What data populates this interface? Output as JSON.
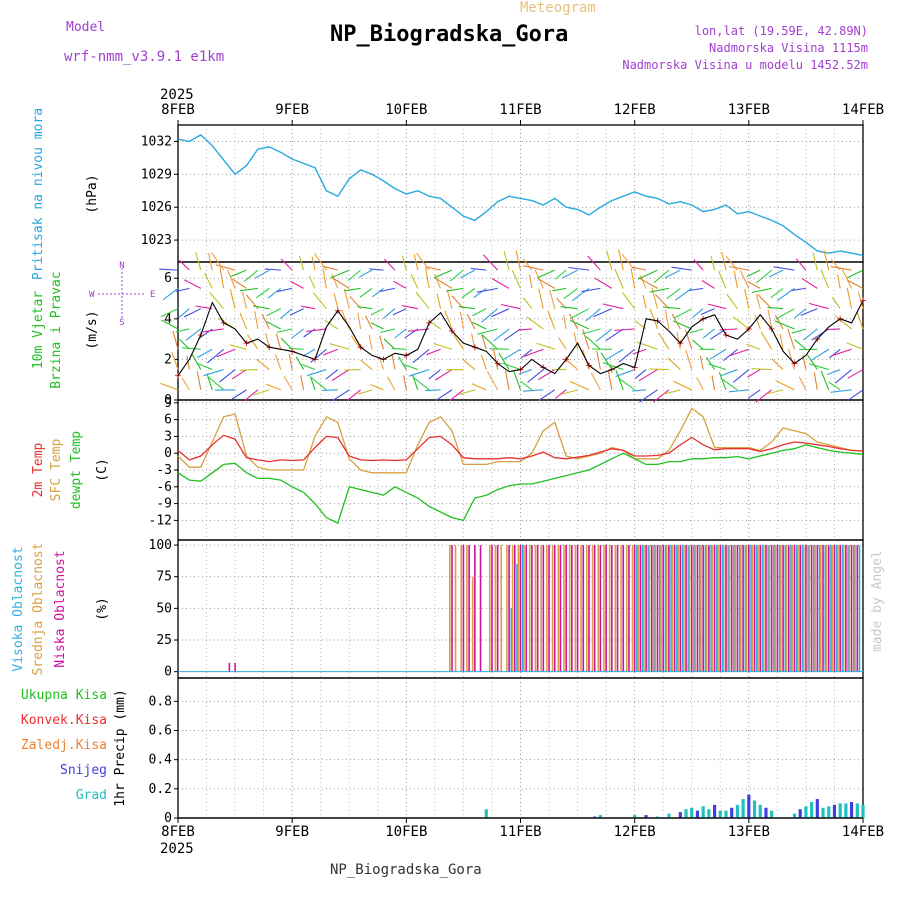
{
  "header": {
    "model_label": "Model",
    "model_name": "wrf-nmm_v3.9.1 e1km",
    "meteogram_label": "Meteogram",
    "station_title": "NP_Biogradska_Gora",
    "coords": "lon,lat (19.59E, 42.89N)",
    "elevation": "Nadmorska Visina 1115m",
    "model_elevation": "Nadmorska Visina u modelu 1452.52m",
    "footer_station": "NP_Biogradska_Gora",
    "credit": "made by Angel"
  },
  "colors": {
    "pressure": "#29a8e0",
    "t2m": "#e83030",
    "tsfc": "#d8a040",
    "dewpt": "#20c020",
    "high_cloud": "#30b0e0",
    "mid_cloud": "#d8a040",
    "low_cloud": "#d010a0",
    "total_precip": "#20c020",
    "conv_precip": "#e83030",
    "frozen_precip": "#f08030",
    "snow": "#4040e0",
    "hail": "#20c0c0",
    "purple_text": "#a040d0"
  },
  "time_axis": {
    "year": "2025",
    "ticks": [
      "8FEB",
      "9FEB",
      "10FEB",
      "11FEB",
      "12FEB",
      "13FEB",
      "14FEB"
    ]
  },
  "panels": {
    "pressure": {
      "title": "Pritisak na nivou mora",
      "unit": "(hPa)"
    },
    "wind": {
      "title": "10m Vjetar",
      "title2": "Brzina i Pravac",
      "unit": "(m/s)",
      "compass_n": "N",
      "compass_s": "S",
      "compass_w": "W",
      "compass_e": "E"
    },
    "temp": {
      "label1": "2m Temp",
      "label2": "SFC Temp",
      "label3": "dewpt Temp",
      "unit": "(C)"
    },
    "cloud": {
      "label1": "Visoka Oblacnost",
      "label2": "Srednja Oblacnost",
      "label3": "Niska Oblacnost",
      "unit": "(%)"
    },
    "precip": {
      "label1": "Ukupna Kisa",
      "label2": "Konvek.Kisa",
      "label3": "Zaledj.Kisa",
      "label4": "Snijeg",
      "label5": "Grad",
      "unit": "1hr Precip (mm)"
    }
  },
  "chart_data": [
    {
      "type": "line",
      "series": [
        {
          "name": "Pritisak na nivou mora",
          "x": [
            0,
            0.1,
            0.2,
            0.3,
            0.4,
            0.5,
            0.6,
            0.7,
            0.8,
            0.9,
            1.0,
            1.1,
            1.2,
            1.3,
            1.4,
            1.5,
            1.6,
            1.7,
            1.8,
            1.9,
            2.0,
            2.1,
            2.2,
            2.3,
            2.4,
            2.5,
            2.6,
            2.7,
            2.8,
            2.9,
            3.0,
            3.1,
            3.2,
            3.3,
            3.4,
            3.5,
            3.6,
            3.7,
            3.8,
            3.9,
            4.0,
            4.1,
            4.2,
            4.3,
            4.4,
            4.5,
            4.6,
            4.7,
            4.8,
            4.9,
            5.0,
            5.1,
            5.2,
            5.3,
            5.4,
            5.5,
            5.6,
            5.7,
            5.8,
            5.9,
            6.0
          ],
          "values": [
            1032.2,
            1032.0,
            1032.6,
            1031.6,
            1030.3,
            1029.0,
            1029.8,
            1031.3,
            1031.5,
            1031.0,
            1030.4,
            1030.0,
            1029.6,
            1027.5,
            1027.0,
            1028.6,
            1029.4,
            1029.0,
            1028.4,
            1027.7,
            1027.2,
            1027.5,
            1027.0,
            1026.8,
            1026.0,
            1025.2,
            1024.8,
            1025.6,
            1026.5,
            1027.0,
            1026.8,
            1026.6,
            1026.2,
            1026.8,
            1026.0,
            1025.8,
            1025.3,
            1026.0,
            1026.6,
            1027.0,
            1027.4,
            1027.0,
            1026.8,
            1026.3,
            1026.5,
            1026.2,
            1025.6,
            1025.8,
            1026.2,
            1025.4,
            1025.6,
            1025.2,
            1024.8,
            1024.3,
            1023.5,
            1022.8,
            1022.0,
            1021.8,
            1022.0,
            1021.8,
            1021.6
          ]
        }
      ],
      "ylabel": "(hPa)",
      "ylim": [
        1021,
        1033.5
      ],
      "yticks": [
        1023,
        1026,
        1029,
        1032
      ],
      "grid": true
    },
    {
      "type": "line",
      "series": [
        {
          "name": "10m Vjetar",
          "x": [
            0,
            0.1,
            0.2,
            0.3,
            0.4,
            0.5,
            0.6,
            0.7,
            0.8,
            0.9,
            1.0,
            1.1,
            1.2,
            1.3,
            1.4,
            1.5,
            1.6,
            1.7,
            1.8,
            1.9,
            2.0,
            2.1,
            2.2,
            2.3,
            2.4,
            2.5,
            2.6,
            2.7,
            2.8,
            2.9,
            3.0,
            3.1,
            3.2,
            3.3,
            3.4,
            3.5,
            3.6,
            3.7,
            3.8,
            3.9,
            4.0,
            4.1,
            4.2,
            4.3,
            4.4,
            4.5,
            4.6,
            4.7,
            4.8,
            4.9,
            5.0,
            5.1,
            5.2,
            5.3,
            5.4,
            5.5,
            5.6,
            5.7,
            5.8,
            5.9,
            6.0
          ],
          "values": [
            1.2,
            2.0,
            3.2,
            4.8,
            3.8,
            3.5,
            2.8,
            3.0,
            2.6,
            2.5,
            2.4,
            2.2,
            2.0,
            3.6,
            4.4,
            3.6,
            2.6,
            2.2,
            2.0,
            2.3,
            2.2,
            2.5,
            3.8,
            4.3,
            3.4,
            2.8,
            2.6,
            2.4,
            1.8,
            1.4,
            1.5,
            2.0,
            1.6,
            1.3,
            2.0,
            2.8,
            1.7,
            1.3,
            1.5,
            1.8,
            1.6,
            4.0,
            3.9,
            3.4,
            2.8,
            3.6,
            4.0,
            4.2,
            3.2,
            3.0,
            3.5,
            4.2,
            3.5,
            2.4,
            1.8,
            2.2,
            3.0,
            3.6,
            4.0,
            3.8,
            4.9
          ]
        }
      ],
      "ylabel": "(m/s)",
      "ylim": [
        0,
        6.8
      ],
      "yticks": [
        0,
        2,
        4,
        6
      ],
      "grid": true
    },
    {
      "type": "line",
      "x": [
        0,
        0.1,
        0.2,
        0.3,
        0.4,
        0.5,
        0.6,
        0.7,
        0.8,
        0.9,
        1.0,
        1.1,
        1.2,
        1.3,
        1.4,
        1.5,
        1.6,
        1.7,
        1.8,
        1.9,
        2.0,
        2.1,
        2.2,
        2.3,
        2.4,
        2.5,
        2.6,
        2.7,
        2.8,
        2.9,
        3.0,
        3.1,
        3.2,
        3.3,
        3.4,
        3.5,
        3.6,
        3.7,
        3.8,
        3.9,
        4.0,
        4.1,
        4.2,
        4.3,
        4.4,
        4.5,
        4.6,
        4.7,
        4.8,
        4.9,
        5.0,
        5.1,
        5.2,
        5.3,
        5.4,
        5.5,
        5.6,
        5.7,
        5.8,
        5.9,
        6.0
      ],
      "series": [
        {
          "name": "2m Temp",
          "values": [
            0.5,
            -1.2,
            -0.5,
            1.5,
            3.2,
            2.5,
            -0.8,
            -1.2,
            -1.5,
            -1.2,
            -1.3,
            -1.2,
            1.0,
            3.0,
            2.8,
            -0.5,
            -1.2,
            -1.3,
            -1.2,
            -1.3,
            -1.2,
            0.8,
            2.8,
            3.0,
            1.5,
            -0.8,
            -1.0,
            -1.0,
            -1.0,
            -0.8,
            -1.0,
            -0.5,
            0.2,
            -0.8,
            -1.0,
            -0.7,
            -0.4,
            0.2,
            0.8,
            0.5,
            -0.5,
            -0.5,
            -0.4,
            0.0,
            1.5,
            2.8,
            1.5,
            0.6,
            0.8,
            0.8,
            0.8,
            0.3,
            0.8,
            1.5,
            2.0,
            1.8,
            1.5,
            1.2,
            0.8,
            0.5,
            0.4
          ]
        },
        {
          "name": "SFC Temp",
          "values": [
            -0.5,
            -2.5,
            -2.5,
            2.0,
            6.5,
            7.0,
            -0.5,
            -2.5,
            -3.0,
            -3.0,
            -3.0,
            -3.0,
            3.0,
            6.5,
            5.5,
            -1.0,
            -3.0,
            -3.5,
            -3.5,
            -3.5,
            -3.5,
            1.5,
            5.5,
            6.5,
            4.0,
            -2.0,
            -2.0,
            -2.0,
            -1.5,
            -1.5,
            -1.5,
            0.0,
            4.0,
            5.5,
            -0.5,
            -1.0,
            -0.5,
            0.0,
            1.0,
            0.5,
            -1.0,
            -1.0,
            -1.0,
            0.5,
            4.0,
            8.0,
            6.5,
            1.0,
            1.0,
            1.0,
            1.0,
            0.5,
            2.0,
            4.5,
            4.0,
            3.5,
            2.0,
            1.5,
            1.0,
            0.5,
            0.4
          ]
        },
        {
          "name": "dewpt Temp",
          "values": [
            -3.5,
            -4.8,
            -5.0,
            -3.5,
            -2.0,
            -1.8,
            -3.5,
            -4.5,
            -4.5,
            -4.8,
            -6.0,
            -7.0,
            -9.0,
            -11.5,
            -12.5,
            -6.0,
            -6.5,
            -7.0,
            -7.5,
            -6.0,
            -7.0,
            -8.0,
            -9.5,
            -10.5,
            -11.5,
            -12.0,
            -8.0,
            -7.5,
            -6.5,
            -5.8,
            -5.5,
            -5.5,
            -5.0,
            -4.5,
            -4.0,
            -3.5,
            -3.0,
            -2.0,
            -1.0,
            0.0,
            -1.0,
            -2.0,
            -2.0,
            -1.5,
            -1.5,
            -1.0,
            -1.0,
            -0.8,
            -0.8,
            -0.6,
            -1.0,
            -0.5,
            0.0,
            0.5,
            0.8,
            1.5,
            1.0,
            0.5,
            0.2,
            0.0,
            -0.2
          ]
        }
      ],
      "ylabel": "(C)",
      "ylim": [
        -15.5,
        9.5
      ],
      "yticks": [
        -12,
        -9,
        -6,
        -3,
        0,
        3,
        6,
        9
      ],
      "grid": true
    },
    {
      "type": "bar",
      "x": [
        0.45,
        0.5,
        2.3,
        2.4,
        2.45,
        2.5,
        2.55,
        2.6,
        2.65,
        2.7,
        2.75,
        2.8,
        2.85,
        2.9,
        2.95,
        3.0,
        3.05,
        3.1,
        3.15,
        3.2,
        3.25,
        3.3,
        3.35,
        3.4,
        3.45,
        3.5,
        3.55,
        3.6,
        3.65,
        3.7,
        3.75,
        3.8,
        3.85,
        3.9,
        3.95,
        4.0,
        4.05,
        4.1,
        4.15,
        4.2,
        4.25,
        4.3,
        4.35,
        4.4,
        4.45,
        4.5,
        4.55,
        4.6,
        4.65,
        4.7,
        4.75,
        4.8,
        4.85,
        4.9,
        4.95,
        5.0,
        5.05,
        5.1,
        5.15,
        5.2,
        5.25,
        5.3,
        5.35,
        5.4,
        5.45,
        5.5,
        5.55,
        5.6,
        5.65,
        5.7,
        5.75,
        5.8,
        5.85,
        5.9,
        5.95
      ],
      "series": [
        {
          "name": "Visoka Oblacnost",
          "values": [
            0,
            0,
            0,
            0,
            0,
            0,
            0,
            0,
            0,
            0,
            0,
            0,
            0,
            50,
            85,
            100,
            0,
            0,
            0,
            0,
            0,
            0,
            0,
            0,
            0,
            0,
            0,
            0,
            0,
            0,
            0,
            0,
            0,
            0,
            0,
            100,
            100,
            100,
            100,
            100,
            100,
            100,
            100,
            100,
            100,
            100,
            100,
            100,
            100,
            100,
            100,
            100,
            100,
            100,
            100,
            100,
            100,
            100,
            100,
            100,
            100,
            100,
            100,
            100,
            100,
            100,
            100,
            100,
            100,
            100,
            100,
            100,
            100,
            100,
            100
          ]
        },
        {
          "name": "Srednja Oblacnost",
          "values": [
            0,
            0,
            0,
            100,
            100,
            100,
            100,
            75,
            0,
            0,
            100,
            100,
            100,
            100,
            100,
            100,
            100,
            100,
            100,
            100,
            100,
            100,
            100,
            100,
            100,
            100,
            100,
            100,
            100,
            100,
            100,
            100,
            100,
            100,
            100,
            100,
            100,
            100,
            100,
            100,
            100,
            100,
            100,
            100,
            100,
            100,
            100,
            100,
            100,
            100,
            100,
            100,
            100,
            100,
            100,
            100,
            100,
            100,
            100,
            100,
            100,
            100,
            100,
            100,
            100,
            100,
            100,
            100,
            100,
            100,
            100,
            100,
            100,
            100,
            100
          ]
        },
        {
          "name": "Niska Oblacnost",
          "values": [
            7,
            7,
            0,
            100,
            0,
            100,
            100,
            100,
            100,
            0,
            100,
            100,
            0,
            100,
            100,
            100,
            100,
            100,
            100,
            100,
            100,
            100,
            100,
            100,
            100,
            100,
            100,
            100,
            100,
            100,
            100,
            100,
            100,
            100,
            100,
            100,
            100,
            100,
            100,
            100,
            100,
            100,
            100,
            100,
            100,
            100,
            100,
            100,
            100,
            100,
            100,
            100,
            100,
            100,
            100,
            100,
            100,
            100,
            100,
            100,
            100,
            100,
            100,
            100,
            100,
            100,
            100,
            100,
            100,
            100,
            100,
            100,
            100,
            100,
            100
          ]
        }
      ],
      "ylabel": "(%)",
      "ylim": [
        -5,
        104
      ],
      "yticks": [
        0,
        25,
        50,
        75,
        100
      ],
      "grid": true
    },
    {
      "type": "bar",
      "x": [
        2.7,
        3.65,
        3.7,
        4.0,
        4.1,
        4.2,
        4.3,
        4.4,
        4.45,
        4.5,
        4.55,
        4.6,
        4.65,
        4.7,
        4.75,
        4.8,
        4.85,
        4.9,
        4.95,
        5.0,
        5.05,
        5.1,
        5.15,
        5.2,
        5.4,
        5.45,
        5.5,
        5.55,
        5.6,
        5.65,
        5.7,
        5.75,
        5.8,
        5.85,
        5.9,
        5.95,
        6.0
      ],
      "series": [
        {
          "name": "Ukupna Kisa",
          "values": [
            0.06,
            0.01,
            0.02,
            0.02,
            0.02,
            0.01,
            0.03,
            0.04,
            0.06,
            0.07,
            0.05,
            0.08,
            0.06,
            0.09,
            0.05,
            0.05,
            0.07,
            0.09,
            0.13,
            0.16,
            0.12,
            0.09,
            0.07,
            0.05,
            0.03,
            0.06,
            0.08,
            0.11,
            0.13,
            0.07,
            0.08,
            0.09,
            0.1,
            0.1,
            0.11,
            0.1,
            0.09
          ]
        }
      ],
      "ylabel": "1hr Precip (mm)",
      "ylim": [
        0,
        0.96
      ],
      "yticks": [
        0,
        0.2,
        0.4,
        0.6,
        0.8
      ],
      "grid": true
    }
  ]
}
